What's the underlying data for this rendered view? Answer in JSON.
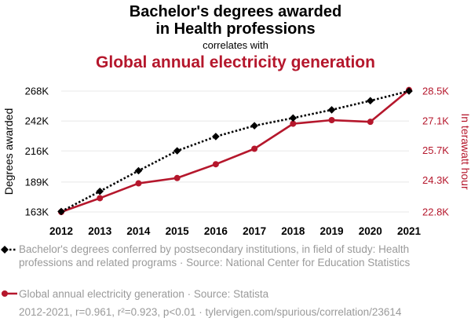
{
  "header": {
    "title_line1": "Bachelor's degrees awarded",
    "title_line2": "in Health professions",
    "subtitle": "correlates with",
    "title2": "Global annual electricity generation"
  },
  "colors": {
    "series1": "#000000",
    "series2": "#b5172c",
    "grid": "#e8e8e8",
    "muted": "#9a9a9a"
  },
  "legend": {
    "series1": "Bachelor's degrees conferred by postsecondary institutions, in field of study: Health professions and related programs · Source: National Center for Education Statistics",
    "series2": "Global annual electricity generation · Source: Statista"
  },
  "footer": "2012-2021, r=0.961, r²=0.923, p<0.01 · tylervigen.com/spurious/correlation/23614",
  "chart_data": {
    "type": "line",
    "x": [
      2012,
      2013,
      2014,
      2015,
      2016,
      2017,
      2018,
      2019,
      2020,
      2021
    ],
    "x_tick_labels": [
      "2012",
      "2013",
      "2014",
      "2015",
      "2016",
      "2017",
      "2018",
      "2019",
      "2020",
      "2021"
    ],
    "series": [
      {
        "name": "Bachelor's degrees awarded in Health professions",
        "axis": "left",
        "color": "#000000",
        "style": "dotted",
        "marker": "diamond",
        "values": [
          163400,
          180900,
          198800,
          216100,
          228500,
          237900,
          244600,
          251700,
          259600,
          268000
        ]
      },
      {
        "name": "Global annual electricity generation",
        "axis": "right",
        "color": "#b5172c",
        "style": "solid",
        "marker": "circle",
        "values": [
          22800,
          23450,
          24150,
          24400,
          25050,
          25780,
          26960,
          27130,
          27050,
          28550
        ]
      }
    ],
    "ylabel_left": "Degrees awarded",
    "ylabel_right": "In terawatt hour",
    "ylim_left": [
      163000,
      268000
    ],
    "yticks_left": [
      163000,
      189000,
      216000,
      242000,
      268000
    ],
    "ytick_labels_left": [
      "163K",
      "189K",
      "216K",
      "242K",
      "268K"
    ],
    "ylim_right": [
      22800,
      28500
    ],
    "yticks_right": [
      22800,
      24300,
      25700,
      27100,
      28500
    ],
    "ytick_labels_right": [
      "22.8K",
      "24.3K",
      "25.7K",
      "27.1K",
      "28.5K"
    ],
    "grid": true
  }
}
